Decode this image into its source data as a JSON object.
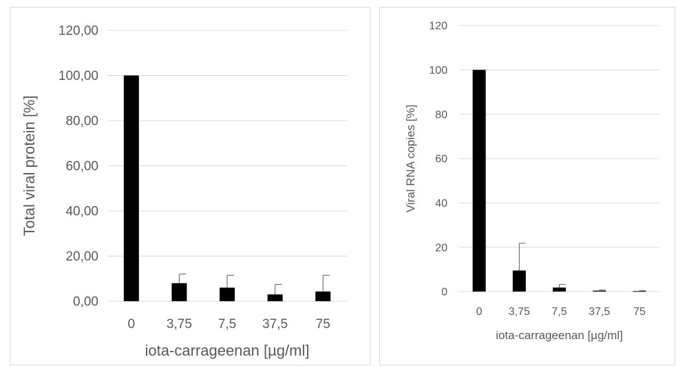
{
  "chart_data": [
    {
      "type": "bar",
      "title": "",
      "categories": [
        "0",
        "3,75",
        "7,5",
        "37,5",
        "75"
      ],
      "values": [
        100.0,
        8.0,
        6.0,
        3.0,
        4.3
      ],
      "error_upper": [
        0.0,
        4.0,
        5.5,
        4.5,
        7.2
      ],
      "xlabel": "iota-carrageenan [µg/ml]",
      "ylabel": "Total viral protein [%]",
      "ylim": [
        0,
        120
      ],
      "yticks": [
        "0,00",
        "20,00",
        "40,00",
        "60,00",
        "80,00",
        "100,00",
        "120,00"
      ],
      "grid": true,
      "bar_color": "#000000",
      "grid_color": "#d9d9d9"
    },
    {
      "type": "bar",
      "title": "",
      "categories": [
        "0",
        "3,75",
        "7,5",
        "37,5",
        "75"
      ],
      "values": [
        100.0,
        9.5,
        1.8,
        0.4,
        0.2
      ],
      "error_upper": [
        0.0,
        12.3,
        1.4,
        0.3,
        0.2
      ],
      "xlabel": "iota-carrageenan [µg/ml]",
      "ylabel": "Viral RNA copies [%]",
      "ylim": [
        0,
        120
      ],
      "yticks": [
        "0",
        "20",
        "40",
        "60",
        "80",
        "100",
        "120"
      ],
      "grid": true,
      "bar_color": "#000000",
      "grid_color": "#d9d9d9"
    }
  ]
}
